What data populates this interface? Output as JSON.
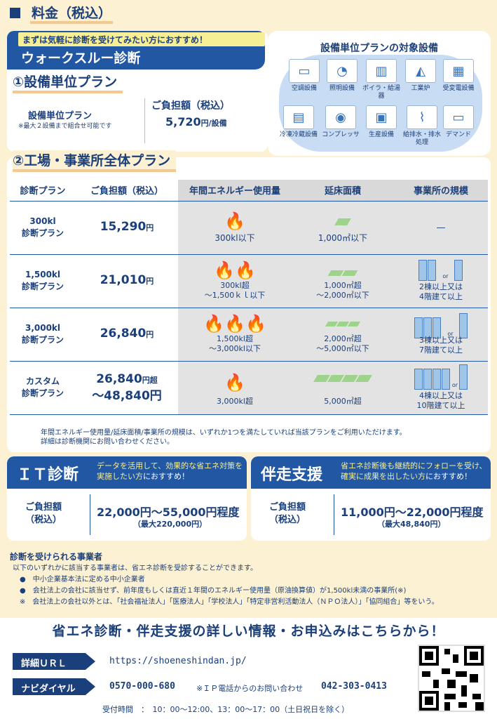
{
  "section_title": "料金（税込）",
  "walkthrough": {
    "subtitle_hl": "まずは気軽に診断を受けてみたい方",
    "subtitle_rest": "におすすめ！",
    "title": "ウォークスルー診断"
  },
  "plan1": {
    "title": "①設備単位プラン",
    "label": "設備単位プラン",
    "note": "※最大２設備まで組合せ可能です",
    "cost_label": "ご負担額（税込）",
    "cost": "5,720",
    "cost_unit": "円/設備"
  },
  "equipment": {
    "title": "設備単位プランの対象設備",
    "items": [
      {
        "label": "空調設備",
        "icon": "aircon-icon",
        "glyph": "▭"
      },
      {
        "label": "照明設備",
        "icon": "lightbulb-icon",
        "glyph": "◔"
      },
      {
        "label": "ボイラ・給湯器",
        "icon": "boiler-icon",
        "glyph": "▥"
      },
      {
        "label": "工業炉",
        "icon": "furnace-icon",
        "glyph": "◭"
      },
      {
        "label": "受変電設備",
        "icon": "substation-icon",
        "glyph": "▦"
      },
      {
        "label": "冷凍冷蔵設備",
        "icon": "freezer-icon",
        "glyph": "▤"
      },
      {
        "label": "コンプレッサ",
        "icon": "compressor-icon",
        "glyph": "◉"
      },
      {
        "label": "生産設備",
        "icon": "production-icon",
        "glyph": "▣"
      },
      {
        "label": "給排水・排水処理",
        "icon": "water-icon",
        "glyph": "⌇"
      },
      {
        "label": "デマンド",
        "icon": "demand-icon",
        "glyph": "▭"
      }
    ]
  },
  "plan2": {
    "title": "②工場・事業所全体プラン",
    "headers": [
      "診断プラン",
      "ご負担額（税込）",
      "年間エネルギー使用量",
      "延床面積",
      "事業所の規模"
    ],
    "rows": [
      {
        "name1": "300kl",
        "name2": "診断プラン",
        "cost": "15,290",
        "cost_unit": "円",
        "cost2": "",
        "energy": "300kl以下",
        "energy2": "",
        "area": "1,000㎡以下",
        "area2": "",
        "scale": "―",
        "scale2": ""
      },
      {
        "name1": "1,500kl",
        "name2": "診断プラン",
        "cost": "21,010",
        "cost_unit": "円",
        "cost2": "",
        "energy": "300kl超",
        "energy2": "～1,500ｋｌ以下",
        "area": "1,000㎡超",
        "area2": "～2,000㎡以下",
        "scale": "2棟以上又は",
        "scale2": "4階建て以上"
      },
      {
        "name1": "3,000kl",
        "name2": "診断プラン",
        "cost": "26,840",
        "cost_unit": "円",
        "cost2": "",
        "energy": "1,500kl超",
        "energy2": "～3,000kl以下",
        "area": "2,000㎡超",
        "area2": "～5,000㎡以下",
        "scale": "3棟以上又は",
        "scale2": "7階建て以上"
      },
      {
        "name1": "カスタム",
        "name2": "診断プラン",
        "cost": "26,840",
        "cost_unit": "円超",
        "cost2": "～48,840円",
        "energy": "3,000kl超",
        "energy2": "",
        "area": "5,000㎡超",
        "area2": "",
        "scale": "4棟以上又は",
        "scale2": "10階建て以上"
      }
    ],
    "or": "or",
    "note1": "年間エネルギー使用量/延床面積/事業所の規模は、いずれか1つを満たしていれば当該プランをご利用いただけます。",
    "note2": "詳細は診断機関にお問い合わせください。"
  },
  "it": {
    "title": "ＩＴ診断",
    "desc_hl": "データを活用して、効果的な省エネ対策を実施したい方",
    "desc_rest": "におすすめ！",
    "label1": "ご負担額",
    "label2": "（税込）",
    "cost": "22,000円～55,000円程度",
    "max": "（最大220,000円）"
  },
  "support": {
    "title": "伴走支援",
    "desc_hl": "省エネ診断後も継続的にフォローを受け、確実に成果を出したい方",
    "desc_rest": "におすすめ！",
    "label1": "ご負担額",
    "label2": "（税込）",
    "cost": "11,000円～22,000円程度",
    "max": "（最大48,840円）"
  },
  "eligibility": {
    "title": "診断を受けられる事業者",
    "intro": "以下のいずれかに該当する事業者は、省エネ診断を受診することができます。",
    "items": [
      "●　中小企業基本法に定める中小企業者",
      "●　会社法上の会社に該当せず、前年度もしくは直近１年間のエネルギー使用量（原油換算値）が1,500kl未満の事業所(※)"
    ],
    "note": "※　会社法上の会社以外とは、「社会福祉法人」「医療法人」「学校法人」「特定非営利活動法人（ＮＰＯ法人）」「協同組合」等をいう。"
  },
  "contact": {
    "title": "省エネ診断・伴走支援の詳しい情報・お申込みはこちらから！",
    "url_label": "詳細ＵＲＬ",
    "url": "https://shoeneshindan.jp/",
    "dial_label": "ナビダイヤル",
    "dial": "0570-000-680",
    "ip_note": "※ＩＰ電話からのお問い合わせ",
    "ip_number": "042-303-0413",
    "hours": "受付時間　：　10：00～12:00、13：00～17：00（土日祝日を除く）"
  }
}
